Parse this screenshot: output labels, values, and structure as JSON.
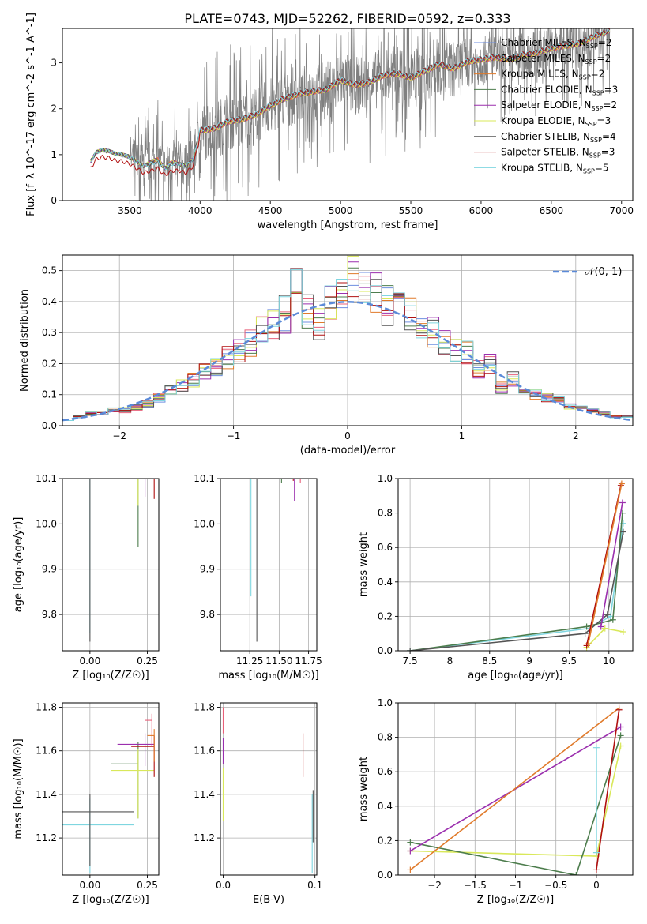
{
  "figure_title": "PLATE=0743, MJD=52262, FIBERID=0592, z=0.333",
  "colors": {
    "chabrier_miles": "#6f8fe0",
    "salpeter_miles": "#e8607a",
    "kroupa_miles": "#e07a2a",
    "chabrier_elodie": "#4d7d4d",
    "salpeter_elodie": "#9b2fae",
    "kroupa_elodie": "#d9e85a",
    "chabrier_stelib": "#555555",
    "salpeter_stelib": "#b01010",
    "kroupa_stelib": "#7fd6e0",
    "data": "#808080",
    "gaussian": "#5b8ad8"
  },
  "chart_data": [
    {
      "id": "spectrum",
      "type": "line",
      "xlabel": "wavelength [Angstrom, rest frame]",
      "ylabel": "Flux [f_λ 10^-17 erg cm^-2 s^-1 A^-1]",
      "xlim": [
        3020,
        7080
      ],
      "ylim": [
        0,
        3.75
      ],
      "xticks": [
        3500,
        4000,
        4500,
        5000,
        5500,
        6000,
        6500,
        7000
      ],
      "yticks": [
        0,
        1,
        2,
        3
      ],
      "legend": [
        {
          "text": "Chabrier MILES, N",
          "sub": "SSP",
          "n": "=2",
          "color": "chabrier_miles"
        },
        {
          "text": "Salpeter MILES, N",
          "sub": "SSP",
          "n": "=2",
          "color": "salpeter_miles"
        },
        {
          "text": "Kroupa MILES, N",
          "sub": "SSP",
          "n": "=2",
          "color": "kroupa_miles"
        },
        {
          "text": "Chabrier ELODIE, N",
          "sub": "SSP",
          "n": "=3",
          "color": "chabrier_elodie"
        },
        {
          "text": "Salpeter ELODIE, N",
          "sub": "SSP",
          "n": "=2",
          "color": "salpeter_elodie"
        },
        {
          "text": "Kroupa ELODIE, N",
          "sub": "SSP",
          "n": "=3",
          "color": "kroupa_elodie"
        },
        {
          "text": "Chabrier STELIB, N",
          "sub": "SSP",
          "n": "=4",
          "color": "chabrier_stelib"
        },
        {
          "text": "Salpeter STELIB, N",
          "sub": "SSP",
          "n": "=3",
          "color": "salpeter_stelib"
        },
        {
          "text": "Kroupa STELIB, N",
          "sub": "SSP",
          "n": "=5",
          "color": "kroupa_stelib"
        }
      ],
      "legend_position": "upper right",
      "model_x": [
        3220,
        3260,
        3300,
        3350,
        3400,
        3450,
        3500,
        3550,
        3600,
        3650,
        3700,
        3750,
        3800,
        3850,
        3900,
        3950,
        4000,
        4100,
        4200,
        4300,
        4400,
        4500,
        4600,
        4700,
        4800,
        4900,
        5000,
        5100,
        5200,
        5300,
        5400,
        5500,
        5600,
        5700,
        5800,
        5900,
        6000,
        6100,
        6200,
        6300,
        6400,
        6500,
        6600,
        6700,
        6800,
        6920
      ],
      "model_y": [
        0.85,
        1.05,
        1.1,
        1.08,
        1.02,
        1.0,
        0.95,
        0.85,
        0.75,
        0.85,
        0.9,
        0.7,
        0.85,
        0.8,
        0.75,
        0.9,
        1.5,
        1.55,
        1.7,
        1.75,
        1.85,
        2.05,
        2.2,
        2.3,
        2.35,
        2.4,
        2.6,
        2.5,
        2.55,
        2.7,
        2.75,
        2.65,
        2.8,
        2.95,
        2.85,
        3.0,
        3.05,
        3.1,
        3.05,
        3.15,
        3.2,
        3.3,
        3.35,
        3.4,
        3.55,
        3.7
      ],
      "stelib_y": [
        0.85,
        1.05,
        1.1,
        1.08,
        1.02,
        1.0,
        0.95,
        0.85,
        0.75,
        0.8,
        0.85,
        0.7,
        0.8,
        0.8,
        0.75,
        0.9,
        1.55,
        1.6,
        1.75,
        1.8,
        1.9,
        2.1,
        2.25,
        2.35,
        2.4,
        2.45,
        2.65,
        2.55,
        2.6,
        2.75,
        2.8,
        2.7,
        2.85,
        3.0,
        2.9,
        3.05,
        3.1,
        3.15,
        3.1,
        3.2,
        3.25,
        3.35,
        3.4,
        3.45,
        3.6,
        3.7
      ],
      "data_x_range": [
        3220,
        6920
      ],
      "data_y_range": [
        0,
        3.75
      ]
    },
    {
      "id": "residuals",
      "type": "bar",
      "xlabel": "(data-model)/error",
      "ylabel": "Normed distribution",
      "xlim": [
        -2.5,
        2.5
      ],
      "ylim": [
        0,
        0.55
      ],
      "xticks": [
        -2,
        -1,
        0,
        1,
        2
      ],
      "yticks": [
        0.0,
        0.1,
        0.2,
        0.3,
        0.4,
        0.5
      ],
      "legend": [
        {
          "text": "𝒩(0, 1)",
          "color": "gaussian",
          "style": "dashed"
        }
      ],
      "legend_position": "upper right",
      "bin_edges": [
        -2.5,
        -2.4,
        -2.3,
        -2.2,
        -2.1,
        -2.0,
        -1.9,
        -1.8,
        -1.7,
        -1.6,
        -1.5,
        -1.4,
        -1.3,
        -1.2,
        -1.1,
        -1.0,
        -0.9,
        -0.8,
        -0.7,
        -0.6,
        -0.5,
        -0.4,
        -0.3,
        -0.2,
        -0.1,
        0.0,
        0.1,
        0.2,
        0.3,
        0.4,
        0.5,
        0.6,
        0.7,
        0.8,
        0.9,
        1.0,
        1.1,
        1.2,
        1.3,
        1.4,
        1.5,
        1.6,
        1.7,
        1.8,
        1.9,
        2.0,
        2.1,
        2.2,
        2.3,
        2.4,
        2.5
      ],
      "hist_values": [
        0.02,
        0.03,
        0.04,
        0.04,
        0.05,
        0.05,
        0.06,
        0.07,
        0.09,
        0.11,
        0.13,
        0.15,
        0.17,
        0.19,
        0.22,
        0.24,
        0.27,
        0.3,
        0.33,
        0.36,
        0.44,
        0.36,
        0.33,
        0.4,
        0.42,
        0.48,
        0.44,
        0.42,
        0.39,
        0.38,
        0.37,
        0.33,
        0.3,
        0.27,
        0.25,
        0.24,
        0.18,
        0.2,
        0.12,
        0.15,
        0.11,
        0.1,
        0.09,
        0.08,
        0.06,
        0.06,
        0.05,
        0.04,
        0.03,
        0.03
      ]
    },
    {
      "id": "age-vs-Z",
      "type": "scatter",
      "xlabel": "Z [log₁₀(Z/Z☉)]",
      "ylabel": "age  [log₁₀(age/yr)]",
      "xlim": [
        -0.12,
        0.3
      ],
      "ylim": [
        9.72,
        10.1
      ],
      "xticks": [
        0.0,
        0.25
      ],
      "xticklabels": [
        "0.00",
        "0.25"
      ],
      "yticks": [
        9.8,
        9.9,
        10.0,
        10.1
      ],
      "xerr_points": [
        {
          "x": 0.0,
          "y": 10.1,
          "xerr": [
            0.12,
            0.2
          ],
          "yerr": [
            0.34,
            0
          ],
          "color": "kroupa_stelib"
        },
        {
          "x": 0.0,
          "y": 10.11,
          "xerr": [
            0.12,
            0.12
          ],
          "yerr": [
            0.37,
            0
          ],
          "color": "chabrier_stelib"
        },
        {
          "x": 0.21,
          "y": 10.13,
          "xerr": [
            0.0,
            0.0
          ],
          "yerr": [
            0.18,
            0.04
          ],
          "color": "chabrier_elodie"
        },
        {
          "x": 0.21,
          "y": 10.13,
          "xerr": [
            0.03,
            0.09
          ],
          "yerr": [
            0.09,
            0.04
          ],
          "color": "kroupa_elodie"
        },
        {
          "x": 0.24,
          "y": 10.15,
          "xerr": [
            0.14,
            0.04
          ],
          "yerr": [
            0.09,
            0.02
          ],
          "color": "salpeter_elodie"
        },
        {
          "x": 0.28,
          "y": 10.145,
          "xerr": [
            0.16,
            0.0
          ],
          "yerr": [
            0.09,
            0.03
          ],
          "color": "salpeter_stelib"
        },
        {
          "x": 0.28,
          "y": 10.15,
          "xerr": [
            0.03,
            0.0
          ],
          "yerr": [
            0.03,
            0.03
          ],
          "color": "salpeter_miles"
        },
        {
          "x": 0.28,
          "y": 10.15,
          "xerr": [
            0.04,
            0.0
          ],
          "yerr": [
            0.03,
            0.03
          ],
          "color": "kroupa_miles"
        }
      ]
    },
    {
      "id": "age-vs-mass",
      "type": "scatter",
      "xlabel": "mass [log₁₀(M/M☉)]",
      "ylabel": "",
      "xlim": [
        11.0,
        11.82
      ],
      "ylim": [
        9.72,
        10.1
      ],
      "xticks": [
        11.25,
        11.5,
        11.75
      ],
      "xticklabels": [
        "11.25",
        "11.50",
        "11.75"
      ],
      "yticks": [
        9.8,
        9.9,
        10.0,
        10.1
      ]
    },
    {
      "id": "massweight-vs-age",
      "type": "line",
      "xlabel": "age  [log₁₀(age/yr)]",
      "ylabel": "mass weight",
      "xlim": [
        7.35,
        10.3
      ],
      "ylim": [
        0,
        1.0
      ],
      "xticks": [
        7.5,
        8.0,
        8.5,
        9.0,
        9.5,
        10.0
      ],
      "yticks": [
        0.0,
        0.2,
        0.4,
        0.6,
        0.8,
        1.0
      ],
      "series": [
        {
          "color": "kroupa_stelib",
          "x": [
            7.5,
            9.75,
            10.02,
            10.18
          ],
          "y": [
            0.0,
            0.13,
            0.2,
            0.74
          ]
        },
        {
          "color": "chabrier_elodie",
          "x": [
            7.5,
            9.72,
            10.05,
            10.17
          ],
          "y": [
            0.0,
            0.14,
            0.18,
            0.8
          ]
        },
        {
          "color": "chabrier_stelib",
          "x": [
            7.5,
            9.7,
            9.98,
            10.18
          ],
          "y": [
            0.0,
            0.1,
            0.21,
            0.69
          ]
        },
        {
          "color": "kroupa_elodie",
          "x": [
            9.72,
            9.95,
            10.18
          ],
          "y": [
            0.02,
            0.13,
            0.11
          ]
        },
        {
          "color": "salpeter_elodie",
          "x": [
            9.9,
            10.17
          ],
          "y": [
            0.14,
            0.86
          ]
        },
        {
          "color": "salpeter_stelib",
          "x": [
            9.72,
            10.15
          ],
          "y": [
            0.03,
            0.96
          ]
        },
        {
          "color": "kroupa_miles",
          "x": [
            9.74,
            10.16
          ],
          "y": [
            0.04,
            0.97
          ]
        }
      ]
    },
    {
      "id": "mass-vs-Z",
      "type": "scatter",
      "xlabel": "Z [log₁₀(Z/Z☉)]",
      "ylabel": "mass [log₁₀(M/M☉)]",
      "xlim": [
        -0.12,
        0.3
      ],
      "ylim": [
        11.03,
        11.82
      ],
      "xticks": [
        0.0,
        0.25
      ],
      "xticklabels": [
        "0.00",
        "0.25"
      ],
      "yticks": [
        11.2,
        11.4,
        11.6,
        11.8
      ]
    },
    {
      "id": "mass-vs-EBV",
      "type": "scatter",
      "xlabel": "E(B-V)",
      "ylabel": "",
      "xlim": [
        -0.003,
        0.102
      ],
      "ylim": [
        11.03,
        11.82
      ],
      "xticks": [
        0.0,
        0.1
      ],
      "xticklabels": [
        "0.0",
        "0.1"
      ],
      "yticks": [
        11.2,
        11.4,
        11.6,
        11.8
      ]
    },
    {
      "id": "massweight-vs-Z",
      "type": "line",
      "xlabel": "Z [log₁₀(Z/Z☉)]",
      "ylabel": "mass weight",
      "xlim": [
        -2.45,
        0.45
      ],
      "ylim": [
        0,
        1.0
      ],
      "xticks": [
        -2.0,
        -1.5,
        -1.0,
        -0.5,
        0.0
      ],
      "yticks": [
        0.0,
        0.2,
        0.4,
        0.6,
        0.8,
        1.0
      ],
      "series": [
        {
          "color": "kroupa_elodie",
          "x": [
            -2.3,
            0.0,
            0.3
          ],
          "y": [
            0.14,
            0.11,
            0.75
          ]
        },
        {
          "color": "chabrier_elodie",
          "x": [
            -2.3,
            -0.25,
            0.3
          ],
          "y": [
            0.19,
            0.0,
            0.81
          ]
        },
        {
          "color": "salpeter_elodie",
          "x": [
            -2.3,
            0.3
          ],
          "y": [
            0.14,
            0.86
          ]
        },
        {
          "color": "kroupa_miles",
          "x": [
            -2.3,
            0.28
          ],
          "y": [
            0.03,
            0.97
          ]
        },
        {
          "color": "salpeter_stelib",
          "x": [
            0.0,
            0.28
          ],
          "y": [
            0.03,
            0.96
          ]
        },
        {
          "color": "kroupa_stelib",
          "x": [
            0.0,
            0.0
          ],
          "y": [
            0.13,
            0.74
          ]
        }
      ]
    }
  ]
}
